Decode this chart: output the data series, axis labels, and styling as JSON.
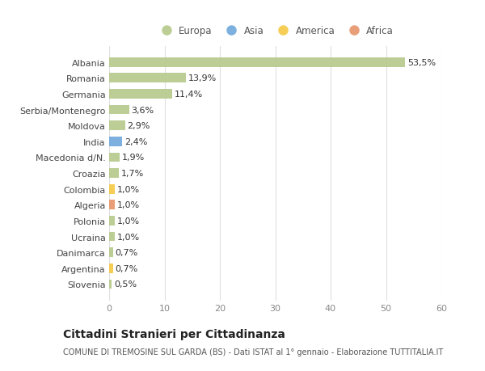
{
  "categories": [
    "Albania",
    "Romania",
    "Germania",
    "Serbia/Montenegro",
    "Moldova",
    "India",
    "Macedonia d/N.",
    "Croazia",
    "Colombia",
    "Algeria",
    "Polonia",
    "Ucraina",
    "Danimarca",
    "Argentina",
    "Slovenia"
  ],
  "values": [
    53.5,
    13.9,
    11.4,
    3.6,
    2.9,
    2.4,
    1.9,
    1.7,
    1.0,
    1.0,
    1.0,
    1.0,
    0.7,
    0.7,
    0.5
  ],
  "labels": [
    "53,5%",
    "13,9%",
    "11,4%",
    "3,6%",
    "2,9%",
    "2,4%",
    "1,9%",
    "1,7%",
    "1,0%",
    "1,0%",
    "1,0%",
    "1,0%",
    "0,7%",
    "0,7%",
    "0,5%"
  ],
  "continents": [
    "Europa",
    "Europa",
    "Europa",
    "Europa",
    "Europa",
    "Asia",
    "Europa",
    "Europa",
    "America",
    "Africa",
    "Europa",
    "Europa",
    "Europa",
    "America",
    "Europa"
  ],
  "continent_colors": {
    "Europa": "#b5c98a",
    "Asia": "#6fa8dc",
    "America": "#f6c842",
    "Africa": "#e6956a"
  },
  "legend_order": [
    "Europa",
    "Asia",
    "America",
    "Africa"
  ],
  "xlim": [
    0,
    60
  ],
  "xticks": [
    0,
    10,
    20,
    30,
    40,
    50,
    60
  ],
  "title": "Cittadini Stranieri per Cittadinanza",
  "subtitle": "COMUNE DI TREMOSINE SUL GARDA (BS) - Dati ISTAT al 1° gennaio - Elaborazione TUTTITALIA.IT",
  "background_color": "#ffffff",
  "bar_height": 0.6,
  "label_fontsize": 8,
  "tick_fontsize": 8,
  "title_fontsize": 10,
  "subtitle_fontsize": 7
}
